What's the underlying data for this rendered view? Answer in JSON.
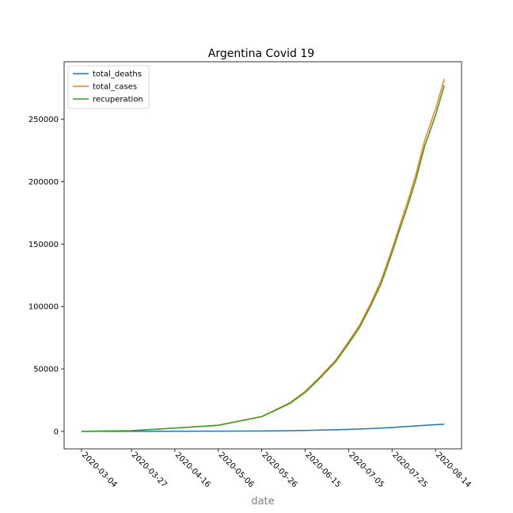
{
  "chart_data": {
    "type": "line",
    "title": "Argentina Covid 19",
    "xlabel": "date",
    "ylabel": "",
    "x_tick_labels": [
      "2020-03-04",
      "2020-03-27",
      "2020-04-16",
      "2020-05-06",
      "2020-05-26",
      "2020-06-15",
      "2020-07-05",
      "2020-07-25",
      "2020-08-14"
    ],
    "y_ticks": [
      0,
      50000,
      100000,
      150000,
      200000,
      250000
    ],
    "ylim": [
      -14000,
      296000
    ],
    "xlim": [
      "2020-02-25",
      "2020-08-26"
    ],
    "grid": false,
    "legend_position": "top-left",
    "x": [
      "2020-03-04",
      "2020-03-27",
      "2020-04-16",
      "2020-05-06",
      "2020-05-26",
      "2020-06-01",
      "2020-06-08",
      "2020-06-15",
      "2020-06-22",
      "2020-06-29",
      "2020-07-05",
      "2020-07-10",
      "2020-07-15",
      "2020-07-20",
      "2020-07-25",
      "2020-07-28",
      "2020-08-01",
      "2020-08-05",
      "2020-08-09",
      "2020-08-14",
      "2020-08-18"
    ],
    "series": [
      {
        "name": "total_deaths",
        "color": "#1f77b4",
        "values": [
          0,
          20,
          80,
          200,
          300,
          450,
          600,
          800,
          1100,
          1300,
          1600,
          1900,
          2200,
          2600,
          3100,
          3500,
          3900,
          4400,
          4800,
          5400,
          5700
        ]
      },
      {
        "name": "total_cases",
        "color": "#ff7f0e",
        "values": [
          1,
          600,
          2700,
          5000,
          12000,
          17000,
          23000,
          32000,
          44000,
          57000,
          72000,
          85000,
          102000,
          121000,
          146000,
          162000,
          183000,
          206000,
          233000,
          258000,
          282000
        ]
      },
      {
        "name": "recuperation",
        "color": "#2ca02c",
        "values": [
          1,
          580,
          2600,
          4800,
          11800,
          16600,
          22400,
          31200,
          43000,
          55800,
          70400,
          83200,
          100000,
          118500,
          143000,
          159000,
          179500,
          202000,
          228500,
          253000,
          277000
        ]
      }
    ]
  }
}
